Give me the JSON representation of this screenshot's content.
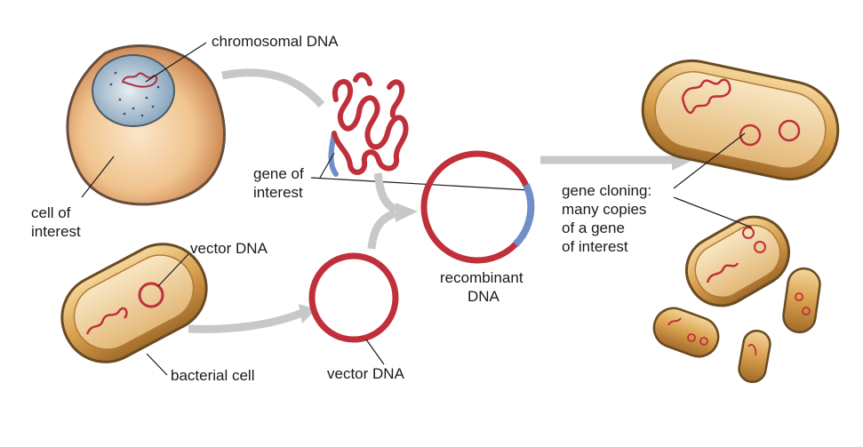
{
  "labels": {
    "chromosomal_dna": "chromosomal DNA",
    "cell_of_interest_line1": "cell of",
    "cell_of_interest_line2": "interest",
    "gene_of_interest_line1": "gene of",
    "gene_of_interest_line2": "interest",
    "vector_dna_top": "vector DNA",
    "vector_dna_bottom": "vector DNA",
    "bacterial_cell": "bacterial cell",
    "recombinant_line1": "recombinant",
    "recombinant_line2": "DNA",
    "cloning_line1": "gene cloning:",
    "cloning_line2": "many copies",
    "cloning_line3": "of a gene",
    "cloning_line4": "of interest"
  },
  "colors": {
    "dna_red": "#c0303a",
    "gene_blue": "#6f8fc8",
    "arrow_gray": "#c8c8c8",
    "cell_fill": "#e8b27a",
    "cell_edge": "#6a4e3a",
    "nucleus": "#9fb8cc",
    "bacteria_fill": "#e2b76a",
    "bacteria_edge": "#6a4a22"
  }
}
